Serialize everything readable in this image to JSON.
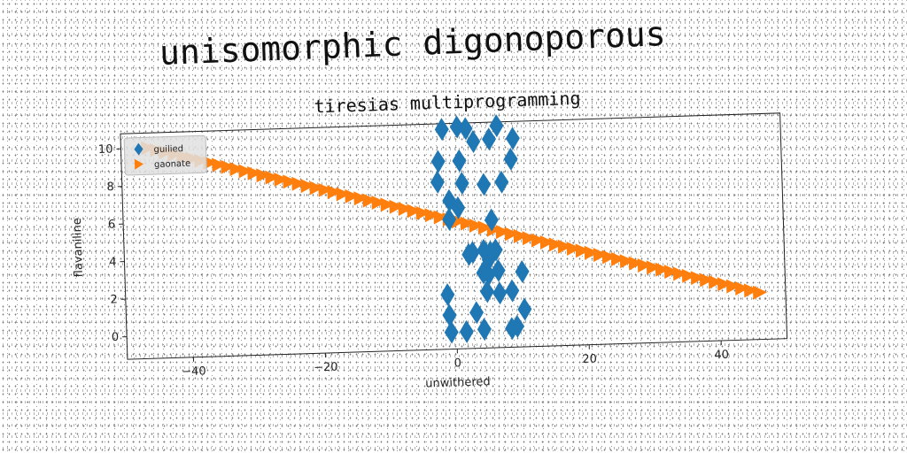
{
  "title": "unisomorphic digonoporous",
  "chart_data": {
    "type": "scatter",
    "title": "tiresias multiprogramming",
    "xlabel": "unwithered",
    "ylabel": "flavaniline",
    "xlim": [
      -50,
      50
    ],
    "ylim": [
      -1.2,
      10.8
    ],
    "xticks": [
      "−40",
      "−20",
      "0",
      "20",
      "40"
    ],
    "xtick_values": [
      -40,
      -20,
      0,
      20,
      40
    ],
    "yticks": [
      "0",
      "2",
      "4",
      "6",
      "8",
      "10"
    ],
    "ytick_values": [
      0,
      2,
      4,
      6,
      8,
      10
    ],
    "grid": false,
    "legend_position": "top-left",
    "series": [
      {
        "name": "guilied",
        "marker": "diamond",
        "color": "#1f77b4",
        "points": [
          [
            -1.3,
            10.5
          ],
          [
            1,
            10.6
          ],
          [
            2.3,
            10.5
          ],
          [
            7,
            10.6
          ],
          [
            3.4,
            9.8
          ],
          [
            5.8,
            9.9
          ],
          [
            9.4,
            9.9
          ],
          [
            -2,
            8.8
          ],
          [
            1.2,
            8.8
          ],
          [
            9,
            8.8
          ],
          [
            -2.2,
            7.7
          ],
          [
            1.5,
            7.6
          ],
          [
            4.8,
            7.5
          ],
          [
            7.5,
            7.6
          ],
          [
            -0.5,
            6.7
          ],
          [
            0.8,
            6.3
          ],
          [
            -0.6,
            5.7
          ],
          [
            5.8,
            5.6
          ],
          [
            2.2,
            3.8
          ],
          [
            2.8,
            3.9
          ],
          [
            4.5,
            4.0
          ],
          [
            5.5,
            3.9
          ],
          [
            6.3,
            4.0
          ],
          [
            5.2,
            3.5
          ],
          [
            4.3,
            2.8
          ],
          [
            5.1,
            2.7
          ],
          [
            6.6,
            2.9
          ],
          [
            10.2,
            2.8
          ],
          [
            -1.2,
            1.7
          ],
          [
            4.8,
            1.8
          ],
          [
            6.7,
            1.7
          ],
          [
            8.6,
            1.8
          ],
          [
            -1.0,
            0.6
          ],
          [
            3.1,
            0.7
          ],
          [
            10.4,
            0.8
          ],
          [
            -0.8,
            -0.3
          ],
          [
            1.5,
            -0.3
          ],
          [
            4.2,
            -0.2
          ],
          [
            8.4,
            -0.2
          ],
          [
            9.2,
            -0.1
          ]
        ]
      },
      {
        "name": "gaonate",
        "marker": "triangle-right",
        "color": "#ff7f0e",
        "line": {
          "x_start": -46,
          "x_end": 46,
          "y_start": 10.0,
          "y_end": 1.3,
          "count": 70
        }
      }
    ]
  }
}
